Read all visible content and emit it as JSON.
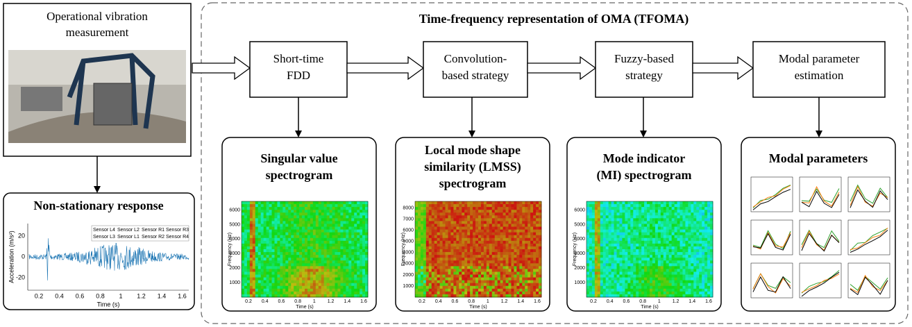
{
  "measurement": {
    "lines": [
      "Operational vibration",
      "measurement"
    ]
  },
  "response": {
    "title": "Non-stationary response",
    "y_label": "Acceleration (m/s²)",
    "x_label": "Time (s)",
    "yticks": [
      "20",
      "0",
      "-20"
    ],
    "xticks": [
      "0.2",
      "0.4",
      "0.6",
      "0.8",
      "1",
      "1.2",
      "1.4",
      "1.6"
    ],
    "legend": [
      "Sensor L4",
      "Sensor L2",
      "Sensor R1",
      "Sensor R3",
      "Sensor L3",
      "Sensor L1",
      "Sensor R2",
      "Sensor R4"
    ]
  },
  "tfoma": {
    "title": "Time-frequency representation of OMA (TFOMA)",
    "steps": [
      {
        "lines": [
          "Short-time",
          "FDD"
        ]
      },
      {
        "lines": [
          "Convolution-",
          "based strategy"
        ]
      },
      {
        "lines": [
          "Fuzzy-based",
          "strategy"
        ]
      },
      {
        "lines": [
          "Modal parameter",
          "estimation"
        ]
      }
    ]
  },
  "panels": [
    {
      "lines": [
        "Singular value",
        "spectrogram"
      ],
      "y_label": "Frequency (Hz)",
      "x_label": "Time (s)",
      "yticks": [
        "1000",
        "2000",
        "3000",
        "4000",
        "5000",
        "6000"
      ],
      "xticks": [
        "0.2",
        "0.4",
        "0.6",
        "0.8",
        "1",
        "1.2",
        "1.4",
        "1.6"
      ]
    },
    {
      "lines": [
        "Local mode shape",
        "similarity (LMSS)",
        "spectrogram"
      ],
      "y_label": "Frequency (Hz)",
      "x_label": "Time (s)",
      "yticks": [
        "1000",
        "2000",
        "3000",
        "4000",
        "5000",
        "6000",
        "7000",
        "8000"
      ],
      "xticks": [
        "0.2",
        "0.4",
        "0.6",
        "0.8",
        "1",
        "1.2",
        "1.4",
        "1.6"
      ]
    },
    {
      "lines": [
        "Mode indicator",
        "(MI) spectrogram"
      ],
      "y_label": "Frequency (Hz)",
      "x_label": "Time (s)",
      "yticks": [
        "1000",
        "2000",
        "3000",
        "4000",
        "5000",
        "6000"
      ],
      "xticks": [
        "0.2",
        "0.4",
        "0.6",
        "0.8",
        "1",
        "1.2",
        "1.4",
        "1.6"
      ]
    },
    {
      "lines": [
        "Modal parameters"
      ]
    }
  ]
}
